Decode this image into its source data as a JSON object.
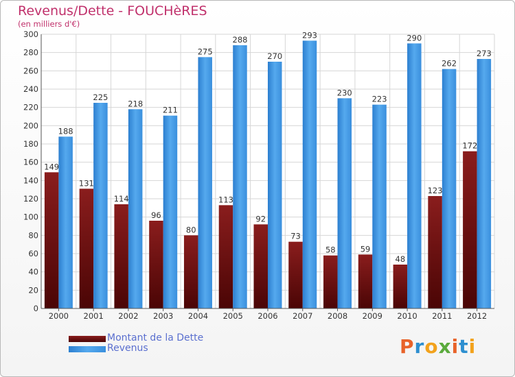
{
  "chart_data": {
    "type": "bar",
    "title": "Revenus/Dette - FOUCHèRES",
    "subtitle": "(en milliers d'€)",
    "categories": [
      "2000",
      "2001",
      "2002",
      "2003",
      "2004",
      "2005",
      "2006",
      "2007",
      "2008",
      "2009",
      "2010",
      "2011",
      "2012"
    ],
    "series": [
      {
        "name": "Montant de la Dette",
        "color": "#7a1010",
        "values": [
          149,
          131,
          114,
          96,
          80,
          113,
          92,
          73,
          58,
          59,
          48,
          123,
          172
        ]
      },
      {
        "name": "Revenus",
        "color": "#3a8fdd",
        "values": [
          188,
          225,
          218,
          211,
          275,
          288,
          270,
          293,
          230,
          223,
          290,
          262,
          273
        ]
      }
    ],
    "ylim": [
      0,
      300
    ],
    "yticks": [
      0,
      20,
      40,
      60,
      80,
      100,
      120,
      140,
      160,
      180,
      200,
      220,
      240,
      260,
      280,
      300
    ],
    "grid": true,
    "legend_position": "bottom-left"
  },
  "branding": {
    "logo_text": "Proxiti",
    "logo_colors": [
      "#e8632a",
      "#2d8fd0",
      "#f2a21c",
      "#5aaa3c",
      "#e8632a",
      "#2d8fd0",
      "#f2a21c"
    ]
  }
}
